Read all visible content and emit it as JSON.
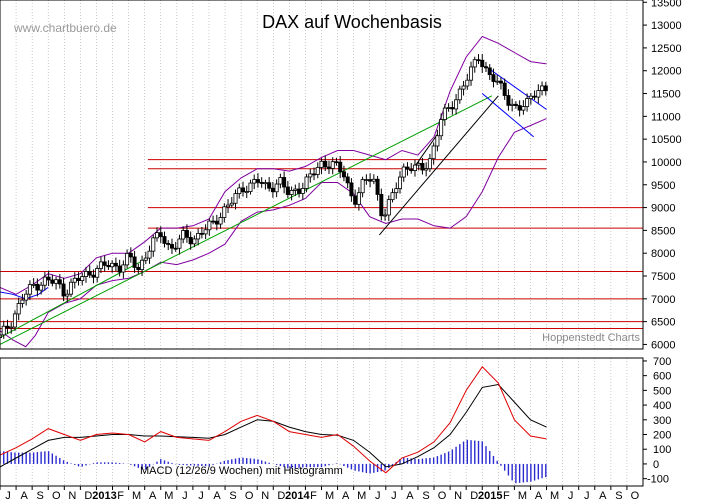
{
  "chart_data": [
    {
      "type": "candlestick",
      "title": "DAX auf Wochenbasis",
      "watermark": "www.chartbuero.de",
      "source_label": "Hoppenstedt Charts",
      "y_ticks": [
        6000,
        6500,
        7000,
        7500,
        8000,
        8500,
        9000,
        9500,
        10000,
        10500,
        11000,
        11500,
        12000,
        12500,
        13000,
        13500
      ],
      "ylim": [
        5900,
        13550
      ],
      "close_series": [
        {
          "x": 0.0,
          "v": 6150
        },
        {
          "x": 0.35,
          "v": 6520
        },
        {
          "x": 0.7,
          "v": 7000
        },
        {
          "x": 1.05,
          "v": 7300
        },
        {
          "x": 1.4,
          "v": 7400
        },
        {
          "x": 1.75,
          "v": 7350
        },
        {
          "x": 2.0,
          "v": 7150
        },
        {
          "x": 2.2,
          "v": 7300
        },
        {
          "x": 2.6,
          "v": 7500
        },
        {
          "x": 3.0,
          "v": 7650
        },
        {
          "x": 3.4,
          "v": 7750
        },
        {
          "x": 3.7,
          "v": 7700
        },
        {
          "x": 4.0,
          "v": 7900
        },
        {
          "x": 4.3,
          "v": 7650
        },
        {
          "x": 4.7,
          "v": 8200
        },
        {
          "x": 5.0,
          "v": 8400
        },
        {
          "x": 5.3,
          "v": 8100
        },
        {
          "x": 5.7,
          "v": 8350
        },
        {
          "x": 6.0,
          "v": 8300
        },
        {
          "x": 6.3,
          "v": 8500
        },
        {
          "x": 6.6,
          "v": 8600
        },
        {
          "x": 7.0,
          "v": 9000
        },
        {
          "x": 7.3,
          "v": 9200
        },
        {
          "x": 7.6,
          "v": 9450
        },
        {
          "x": 8.0,
          "v": 9600
        },
        {
          "x": 8.3,
          "v": 9400
        },
        {
          "x": 8.7,
          "v": 9600
        },
        {
          "x": 9.0,
          "v": 9250
        },
        {
          "x": 9.4,
          "v": 9500
        },
        {
          "x": 9.7,
          "v": 9700
        },
        {
          "x": 10.0,
          "v": 9950
        },
        {
          "x": 10.3,
          "v": 10000
        },
        {
          "x": 10.7,
          "v": 9700
        },
        {
          "x": 11.0,
          "v": 9150
        },
        {
          "x": 11.3,
          "v": 9500
        },
        {
          "x": 11.6,
          "v": 9700
        },
        {
          "x": 11.9,
          "v": 8800
        },
        {
          "x": 12.2,
          "v": 9200
        },
        {
          "x": 12.5,
          "v": 9850
        },
        {
          "x": 12.8,
          "v": 9900
        },
        {
          "x": 13.1,
          "v": 9800
        },
        {
          "x": 13.4,
          "v": 10100
        },
        {
          "x": 13.7,
          "v": 10900
        },
        {
          "x": 14.0,
          "v": 11200
        },
        {
          "x": 14.3,
          "v": 11550
        },
        {
          "x": 14.6,
          "v": 11900
        },
        {
          "x": 14.9,
          "v": 12350
        },
        {
          "x": 15.2,
          "v": 11900
        },
        {
          "x": 15.5,
          "v": 11700
        },
        {
          "x": 15.8,
          "v": 11400
        },
        {
          "x": 16.1,
          "v": 11100
        },
        {
          "x": 16.4,
          "v": 11300
        },
        {
          "x": 16.7,
          "v": 11650
        },
        {
          "x": 17.0,
          "v": 11500
        }
      ],
      "upper_band": [
        {
          "x": 0.0,
          "v": 7250
        },
        {
          "x": 0.5,
          "v": 7100
        },
        {
          "x": 1.0,
          "v": 7300
        },
        {
          "x": 1.5,
          "v": 7550
        },
        {
          "x": 2.0,
          "v": 7450
        },
        {
          "x": 2.5,
          "v": 7550
        },
        {
          "x": 3.0,
          "v": 7900
        },
        {
          "x": 3.5,
          "v": 8000
        },
        {
          "x": 4.0,
          "v": 8000
        },
        {
          "x": 4.5,
          "v": 8250
        },
        {
          "x": 5.0,
          "v": 8550
        },
        {
          "x": 5.5,
          "v": 8550
        },
        {
          "x": 6.0,
          "v": 8600
        },
        {
          "x": 6.5,
          "v": 8750
        },
        {
          "x": 7.0,
          "v": 9350
        },
        {
          "x": 7.5,
          "v": 9650
        },
        {
          "x": 8.0,
          "v": 9850
        },
        {
          "x": 8.5,
          "v": 9850
        },
        {
          "x": 9.0,
          "v": 9800
        },
        {
          "x": 9.5,
          "v": 9900
        },
        {
          "x": 10.0,
          "v": 10100
        },
        {
          "x": 10.5,
          "v": 10250
        },
        {
          "x": 11.0,
          "v": 10250
        },
        {
          "x": 11.5,
          "v": 10150
        },
        {
          "x": 12.0,
          "v": 10050
        },
        {
          "x": 12.5,
          "v": 10250
        },
        {
          "x": 13.0,
          "v": 10150
        },
        {
          "x": 13.5,
          "v": 10550
        },
        {
          "x": 14.0,
          "v": 11550
        },
        {
          "x": 14.5,
          "v": 12300
        },
        {
          "x": 15.0,
          "v": 12750
        },
        {
          "x": 15.5,
          "v": 12600
        },
        {
          "x": 16.0,
          "v": 12400
        },
        {
          "x": 16.5,
          "v": 12200
        },
        {
          "x": 17.0,
          "v": 12150
        }
      ],
      "lower_band": [
        {
          "x": 0.0,
          "v": 6300
        },
        {
          "x": 0.4,
          "v": 6100
        },
        {
          "x": 0.8,
          "v": 5950
        },
        {
          "x": 1.1,
          "v": 6200
        },
        {
          "x": 1.5,
          "v": 6700
        },
        {
          "x": 2.0,
          "v": 6900
        },
        {
          "x": 2.5,
          "v": 7000
        },
        {
          "x": 3.0,
          "v": 7300
        },
        {
          "x": 3.5,
          "v": 7400
        },
        {
          "x": 4.0,
          "v": 7450
        },
        {
          "x": 4.5,
          "v": 7600
        },
        {
          "x": 5.0,
          "v": 7800
        },
        {
          "x": 5.5,
          "v": 7750
        },
        {
          "x": 6.0,
          "v": 7850
        },
        {
          "x": 6.5,
          "v": 8000
        },
        {
          "x": 7.0,
          "v": 8200
        },
        {
          "x": 7.5,
          "v": 8700
        },
        {
          "x": 8.0,
          "v": 8900
        },
        {
          "x": 8.5,
          "v": 8950
        },
        {
          "x": 9.0,
          "v": 9050
        },
        {
          "x": 9.5,
          "v": 9200
        },
        {
          "x": 10.0,
          "v": 9550
        },
        {
          "x": 10.5,
          "v": 9550
        },
        {
          "x": 11.0,
          "v": 9300
        },
        {
          "x": 11.5,
          "v": 8800
        },
        {
          "x": 12.0,
          "v": 8650
        },
        {
          "x": 12.5,
          "v": 8750
        },
        {
          "x": 13.0,
          "v": 8750
        },
        {
          "x": 13.5,
          "v": 8600
        },
        {
          "x": 14.0,
          "v": 8550
        },
        {
          "x": 14.5,
          "v": 8800
        },
        {
          "x": 15.0,
          "v": 9350
        },
        {
          "x": 15.5,
          "v": 10100
        },
        {
          "x": 16.0,
          "v": 10650
        },
        {
          "x": 16.5,
          "v": 10800
        },
        {
          "x": 17.0,
          "v": 10950
        }
      ],
      "support_resistance_levels": [
        10050,
        9850,
        9000,
        8550,
        7600,
        7000,
        6500,
        6350
      ],
      "trend_lines": [
        {
          "color": "#00a000",
          "from": {
            "x": 0.0,
            "v": 6000
          },
          "to": {
            "x": 15.3,
            "v": 11450
          }
        },
        {
          "color": "#00a000",
          "from": {
            "x": 0.0,
            "v": 6150
          },
          "to": {
            "x": 4.6,
            "v": 7900
          }
        },
        {
          "color": "#0000ff",
          "from": {
            "x": 15.2,
            "v": 12050
          },
          "to": {
            "x": 17.0,
            "v": 11150
          }
        },
        {
          "color": "#0000ff",
          "from": {
            "x": 15.0,
            "v": 11500
          },
          "to": {
            "x": 16.6,
            "v": 10550
          }
        },
        {
          "color": "#000000",
          "from": {
            "x": 11.8,
            "v": 8400
          },
          "to": {
            "x": 15.5,
            "v": 11450
          }
        },
        {
          "color": "#000000",
          "from": {
            "x": 12.8,
            "v": 9800
          },
          "to": {
            "x": 13.6,
            "v": 10600
          }
        }
      ],
      "blue_overlay": [
        {
          "x": 0.0,
          "v": 7150
        },
        {
          "x": 0.4,
          "v": 7100
        },
        {
          "x": 0.8,
          "v": 7000
        },
        {
          "x": 1.2,
          "v": 7100
        },
        {
          "x": 1.5,
          "v": 7250
        }
      ]
    },
    {
      "type": "macd",
      "title": "MACD (12/26/9 Wochen) mit Histogramm",
      "y_ticks": [
        -100,
        0,
        100,
        200,
        300,
        400,
        500,
        600,
        700
      ],
      "ylim": [
        -150,
        720
      ],
      "macd_line": [
        {
          "x": 0.0,
          "v": 60
        },
        {
          "x": 0.5,
          "v": 110
        },
        {
          "x": 1.0,
          "v": 170
        },
        {
          "x": 1.5,
          "v": 240
        },
        {
          "x": 2.0,
          "v": 200
        },
        {
          "x": 2.5,
          "v": 160
        },
        {
          "x": 3.0,
          "v": 200
        },
        {
          "x": 3.5,
          "v": 210
        },
        {
          "x": 4.0,
          "v": 200
        },
        {
          "x": 4.5,
          "v": 150
        },
        {
          "x": 5.0,
          "v": 220
        },
        {
          "x": 5.5,
          "v": 180
        },
        {
          "x": 6.0,
          "v": 170
        },
        {
          "x": 6.5,
          "v": 160
        },
        {
          "x": 7.0,
          "v": 220
        },
        {
          "x": 7.5,
          "v": 290
        },
        {
          "x": 8.0,
          "v": 330
        },
        {
          "x": 8.5,
          "v": 290
        },
        {
          "x": 9.0,
          "v": 220
        },
        {
          "x": 9.5,
          "v": 200
        },
        {
          "x": 10.0,
          "v": 180
        },
        {
          "x": 10.5,
          "v": 200
        },
        {
          "x": 11.0,
          "v": 120
        },
        {
          "x": 11.5,
          "v": 20
        },
        {
          "x": 12.0,
          "v": -60
        },
        {
          "x": 12.5,
          "v": 40
        },
        {
          "x": 13.0,
          "v": 80
        },
        {
          "x": 13.5,
          "v": 150
        },
        {
          "x": 14.0,
          "v": 280
        },
        {
          "x": 14.5,
          "v": 500
        },
        {
          "x": 15.0,
          "v": 660
        },
        {
          "x": 15.5,
          "v": 550
        },
        {
          "x": 16.0,
          "v": 300
        },
        {
          "x": 16.5,
          "v": 190
        },
        {
          "x": 17.0,
          "v": 170
        }
      ],
      "signal_line": [
        {
          "x": 0.0,
          "v": -20
        },
        {
          "x": 0.5,
          "v": 40
        },
        {
          "x": 1.0,
          "v": 100
        },
        {
          "x": 1.5,
          "v": 160
        },
        {
          "x": 2.0,
          "v": 180
        },
        {
          "x": 2.5,
          "v": 180
        },
        {
          "x": 3.0,
          "v": 190
        },
        {
          "x": 3.5,
          "v": 200
        },
        {
          "x": 4.0,
          "v": 200
        },
        {
          "x": 4.5,
          "v": 190
        },
        {
          "x": 5.0,
          "v": 190
        },
        {
          "x": 5.5,
          "v": 185
        },
        {
          "x": 6.0,
          "v": 180
        },
        {
          "x": 6.5,
          "v": 175
        },
        {
          "x": 7.0,
          "v": 200
        },
        {
          "x": 7.5,
          "v": 250
        },
        {
          "x": 8.0,
          "v": 300
        },
        {
          "x": 8.5,
          "v": 290
        },
        {
          "x": 9.0,
          "v": 250
        },
        {
          "x": 9.5,
          "v": 220
        },
        {
          "x": 10.0,
          "v": 200
        },
        {
          "x": 10.5,
          "v": 195
        },
        {
          "x": 11.0,
          "v": 160
        },
        {
          "x": 11.5,
          "v": 80
        },
        {
          "x": 12.0,
          "v": -20
        },
        {
          "x": 12.5,
          "v": 0
        },
        {
          "x": 13.0,
          "v": 50
        },
        {
          "x": 13.5,
          "v": 110
        },
        {
          "x": 14.0,
          "v": 200
        },
        {
          "x": 14.5,
          "v": 350
        },
        {
          "x": 15.0,
          "v": 520
        },
        {
          "x": 15.5,
          "v": 540
        },
        {
          "x": 16.0,
          "v": 420
        },
        {
          "x": 16.5,
          "v": 300
        },
        {
          "x": 17.0,
          "v": 250
        }
      ]
    }
  ],
  "x_axis": {
    "labels": [
      "J",
      "A",
      "S",
      "O",
      "N",
      "D",
      "2013",
      "F",
      "M",
      "A",
      "M",
      "J",
      "J",
      "A",
      "S",
      "O",
      "N",
      "D",
      "2014",
      "F",
      "M",
      "A",
      "M",
      "J",
      "J",
      "A",
      "S",
      "O",
      "N",
      "D",
      "2015",
      "F",
      "M",
      "A",
      "M",
      "J",
      "J",
      "A",
      "S",
      "O"
    ],
    "bold_labels": [
      "2013",
      "2014",
      "2015"
    ],
    "period_count": 40
  },
  "colors": {
    "price": "#000000",
    "band": "#8000a0",
    "levels": "#cc0000",
    "trend_green": "#00a000",
    "trend_blue": "#0000ff",
    "macd": "#e00000",
    "signal": "#000000",
    "histogram": "#2a2ad0",
    "grid": "#a8a8a8"
  }
}
